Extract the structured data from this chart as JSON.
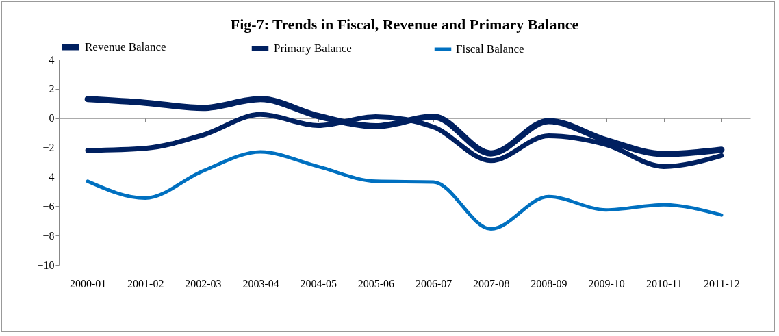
{
  "chart_data": {
    "type": "line",
    "title": "Fig-7: Trends in Fiscal, Revenue and Primary Balance",
    "categories": [
      "2000-01",
      "2001-02",
      "2002-03",
      "2003-04",
      "2004-05",
      "2005-06",
      "2006-07",
      "2007-08",
      "2008-09",
      "2009-10",
      "2010-11",
      "2011-12"
    ],
    "series": [
      {
        "name": "Revenue Balance",
        "color": "#002060",
        "values": [
          1.3,
          1.05,
          0.7,
          1.3,
          0.15,
          -0.55,
          0.1,
          -2.4,
          -0.2,
          -1.5,
          -2.45,
          -2.15
        ]
      },
      {
        "name": "Primary Balance",
        "color": "#002060",
        "values": [
          -2.2,
          -2.05,
          -1.15,
          0.25,
          -0.5,
          0.1,
          -0.6,
          -2.9,
          -1.2,
          -1.8,
          -3.3,
          -2.55
        ]
      },
      {
        "name": "Fiscal Balance",
        "color": "#0070c0",
        "values": [
          -4.3,
          -5.45,
          -3.6,
          -2.3,
          -3.3,
          -4.3,
          -4.35,
          -7.55,
          -5.35,
          -6.25,
          -5.9,
          -6.6
        ]
      }
    ],
    "ylim": [
      -10,
      4
    ],
    "yticks": [
      -10,
      -8,
      -6,
      -4,
      -2,
      0,
      2,
      4
    ],
    "legend": "top"
  }
}
